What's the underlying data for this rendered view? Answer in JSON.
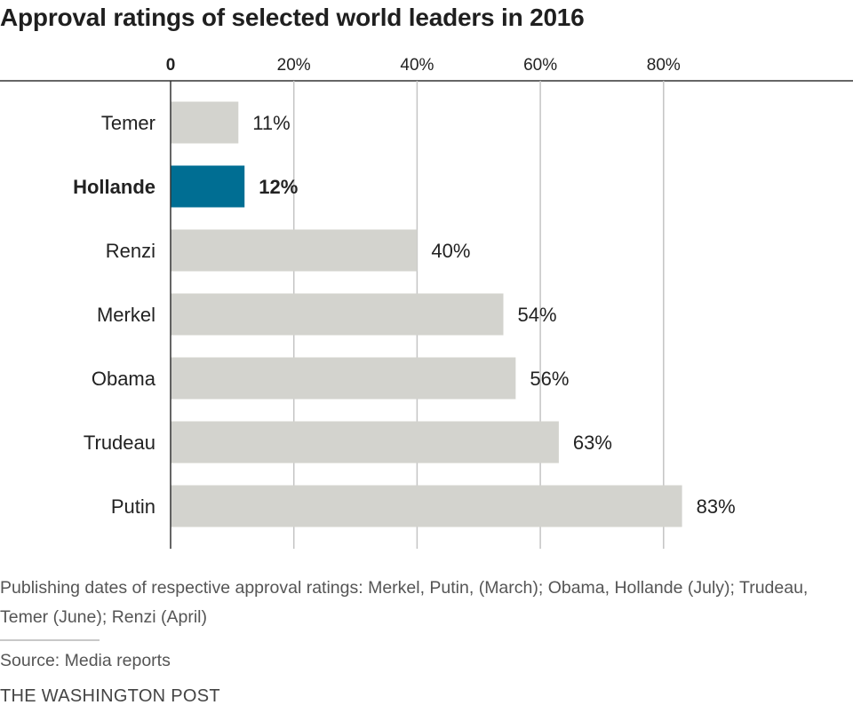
{
  "chart_data": {
    "type": "bar",
    "orientation": "horizontal",
    "title": "Approval ratings of selected world leaders in 2016",
    "categories": [
      "Temer",
      "Hollande",
      "Renzi",
      "Merkel",
      "Obama",
      "Trudeau",
      "Putin"
    ],
    "values": [
      11,
      12,
      40,
      54,
      56,
      63,
      83
    ],
    "value_labels": [
      "11%",
      "12%",
      "40%",
      "54%",
      "56%",
      "63%",
      "83%"
    ],
    "highlighted_category": "Hollande",
    "xlim": [
      0,
      100
    ],
    "x_ticks": [
      0,
      20,
      40,
      60,
      80
    ],
    "x_tick_labels": [
      "0",
      "20%",
      "40%",
      "60%",
      "80%"
    ],
    "xlabel": "",
    "ylabel": "",
    "grid": true,
    "colors": {
      "bar": "#d3d3ce",
      "highlight": "#006e93",
      "grid": "#c4c4c4",
      "axis": "#333333"
    }
  },
  "note": "Publishing dates of respective approval ratings: Merkel, Putin, (March); Obama, Hollande (July); Trudeau, Temer (June); Renzi (April)",
  "source": "Source: Media reports",
  "credit": "THE WASHINGTON POST"
}
